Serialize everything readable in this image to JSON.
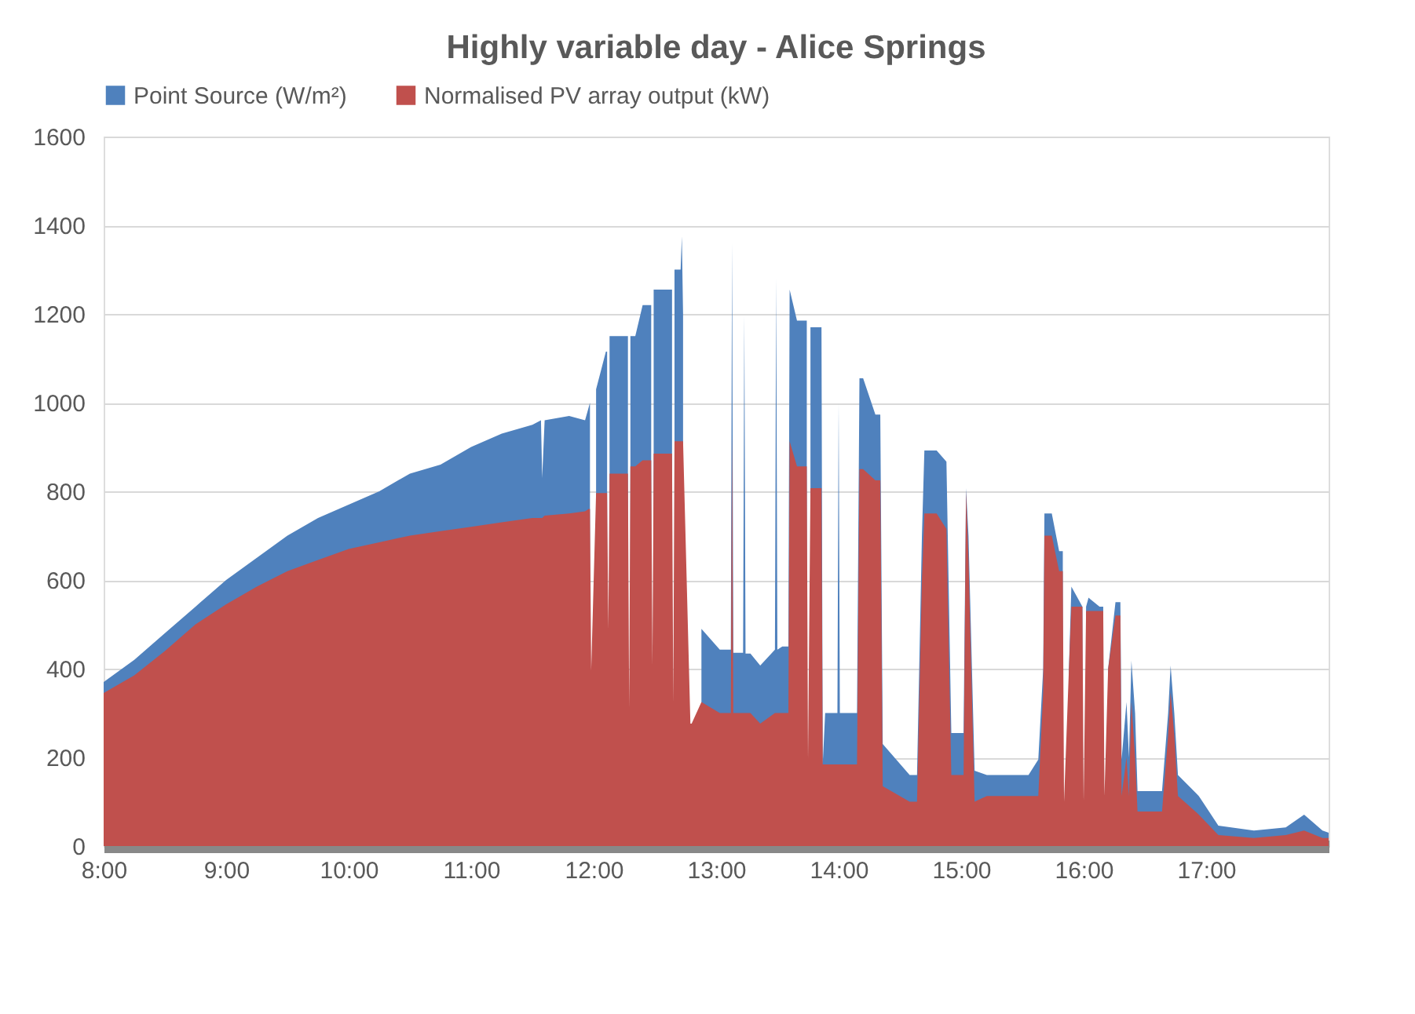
{
  "chart_data": {
    "type": "area",
    "title": "Highly variable day - Alice Springs",
    "x": [
      8.0,
      8.25,
      8.5,
      8.75,
      9.0,
      9.25,
      9.5,
      9.75,
      10.0,
      10.25,
      10.5,
      10.75,
      11.0,
      11.25,
      11.5,
      11.57,
      11.58,
      11.6,
      11.8,
      11.93,
      11.96,
      11.97,
      11.98,
      12.02,
      12.1,
      12.11,
      12.12,
      12.13,
      12.17,
      12.25,
      12.28,
      12.29,
      12.3,
      12.34,
      12.4,
      12.44,
      12.47,
      12.48,
      12.49,
      12.53,
      12.59,
      12.64,
      12.65,
      12.66,
      12.71,
      12.72,
      12.73,
      12.79,
      12.8,
      12.88,
      13.03,
      13.12,
      13.13,
      13.14,
      13.16,
      13.22,
      13.23,
      13.24,
      13.28,
      13.36,
      13.48,
      13.49,
      13.5,
      13.54,
      13.59,
      13.6,
      13.66,
      13.72,
      13.74,
      13.75,
      13.77,
      13.8,
      13.84,
      13.86,
      13.87,
      13.89,
      13.91,
      13.99,
      14.0,
      14.01,
      14.11,
      14.15,
      14.17,
      14.2,
      14.3,
      14.34,
      14.36,
      14.58,
      14.64,
      14.68,
      14.7,
      14.8,
      14.88,
      14.92,
      15.02,
      15.04,
      15.06,
      15.11,
      15.21,
      15.55,
      15.63,
      15.67,
      15.68,
      15.74,
      15.8,
      15.83,
      15.84,
      15.88,
      15.9,
      15.97,
      15.99,
      16.0,
      16.02,
      16.04,
      16.13,
      16.16,
      16.17,
      16.2,
      16.26,
      16.3,
      16.31,
      16.35,
      16.37,
      16.39,
      16.42,
      16.44,
      16.64,
      16.69,
      16.71,
      16.74,
      16.77,
      16.94,
      17.1,
      17.39,
      17.65,
      17.8,
      17.95,
      18.0
    ],
    "xlim": [
      8,
      18
    ],
    "xticks": [
      {
        "value": 8,
        "label": "8:00"
      },
      {
        "value": 9,
        "label": "9:00"
      },
      {
        "value": 10,
        "label": "10:00"
      },
      {
        "value": 11,
        "label": "11:00"
      },
      {
        "value": 12,
        "label": "12:00"
      },
      {
        "value": 13,
        "label": "13:00"
      },
      {
        "value": 14,
        "label": "14:00"
      },
      {
        "value": 15,
        "label": "15:00"
      },
      {
        "value": 16,
        "label": "16:00"
      },
      {
        "value": 17,
        "label": "17:00"
      }
    ],
    "ylim": [
      0,
      1600
    ],
    "yticks": [
      0,
      200,
      400,
      600,
      800,
      {
        "value": 1000,
        "label": "1000"
      },
      {
        "value": 1200,
        "label": "1200"
      },
      {
        "value": 1400,
        "label": "1400"
      },
      {
        "value": 1600,
        "label": "1600"
      }
    ],
    "grid": "y",
    "legend": "top",
    "series": [
      {
        "name": "Point Source (W/m²)",
        "color": "#4f81bd",
        "values": [
          370,
          420,
          480,
          540,
          600,
          650,
          700,
          740,
          770,
          800,
          840,
          860,
          900,
          930,
          950,
          960,
          830,
          960,
          970,
          960,
          990,
          1000,
          null,
          1030,
          1115,
          1115,
          null,
          1150,
          1150,
          1150,
          1150,
          null,
          1150,
          1150,
          1220,
          1220,
          1220,
          null,
          1255,
          1255,
          1255,
          1255,
          null,
          1300,
          1300,
          1375,
          1200,
          null,
          null,
          490,
          443,
          443,
          1360,
          436,
          436,
          436,
          1196,
          434,
          434,
          407,
          443,
          1280,
          443,
          450,
          450,
          1255,
          1185,
          1185,
          1185,
          null,
          1170,
          1170,
          1170,
          1170,
          184,
          300,
          300,
          300,
          1000,
          300,
          300,
          300,
          1055,
          1055,
          973,
          973,
          230,
          160,
          160,
          700,
          892,
          892,
          867,
          255,
          255,
          807,
          700,
          170,
          160,
          160,
          195,
          400,
          750,
          750,
          665,
          665,
          null,
          400,
          585,
          550,
          540,
          null,
          540,
          560,
          540,
          540,
          null,
          400,
          550,
          550,
          195,
          325,
          200,
          418,
          300,
          124,
          124,
          300,
          407,
          300,
          160,
          113,
          46,
          35,
          42,
          71,
          35,
          30
        ]
      },
      {
        "name": "Normalised PV array output (kW)",
        "color": "#c0504d",
        "values": [
          345,
          385,
          440,
          500,
          545,
          585,
          620,
          645,
          670,
          685,
          700,
          710,
          720,
          730,
          740,
          740,
          740,
          745,
          750,
          755,
          760,
          760,
          396,
          796,
          796,
          796,
          490,
          840,
          840,
          840,
          840,
          310,
          856,
          856,
          870,
          870,
          870,
          407,
          885,
          885,
          885,
          885,
          325,
          913,
          913,
          913,
          913,
          276,
          276,
          325,
          300,
          300,
          927,
          300,
          300,
          300,
          300,
          300,
          300,
          276,
          300,
          300,
          300,
          300,
          300,
          913,
          856,
          856,
          856,
          195,
          807,
          807,
          807,
          807,
          184,
          184,
          184,
          184,
          184,
          184,
          184,
          184,
          850,
          850,
          825,
          825,
          135,
          100,
          100,
          600,
          750,
          750,
          715,
          160,
          160,
          800,
          650,
          100,
          113,
          113,
          113,
          350,
          700,
          700,
          620,
          620,
          100,
          400,
          540,
          540,
          540,
          100,
          530,
          530,
          530,
          530,
          113,
          400,
          520,
          520,
          113,
          200,
          113,
          325,
          200,
          78,
          78,
          250,
          347,
          250,
          113,
          71,
          25,
          18,
          25,
          35,
          18,
          18
        ]
      }
    ]
  }
}
